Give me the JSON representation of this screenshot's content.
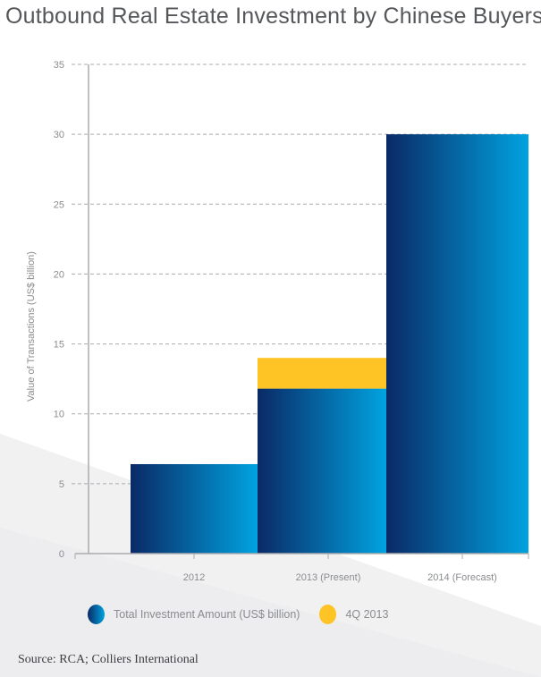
{
  "chart_data": {
    "type": "bar",
    "title": "Outbound Real Estate Investment by Chinese Buyers",
    "xlabel": "",
    "ylabel": "Value of Transactions (US$ billion)",
    "ylim": [
      0,
      35
    ],
    "yticks": [
      "0",
      "5",
      "10",
      "15",
      "20",
      "25",
      "30",
      "35"
    ],
    "categories": [
      "2012",
      "2013 (Present)",
      "2014 (Forecast)"
    ],
    "stacked": true,
    "series": [
      {
        "name": "Total Investment Amount (US$ billion)",
        "values": [
          6.4,
          11.8,
          30
        ],
        "color": "#0a2a66"
      },
      {
        "name": "4Q 2013",
        "values": [
          0,
          2.2,
          0
        ],
        "color": "#fec425"
      }
    ],
    "grid": true,
    "legend_placement": "bottom"
  },
  "source": "Source: RCA; Colliers International"
}
